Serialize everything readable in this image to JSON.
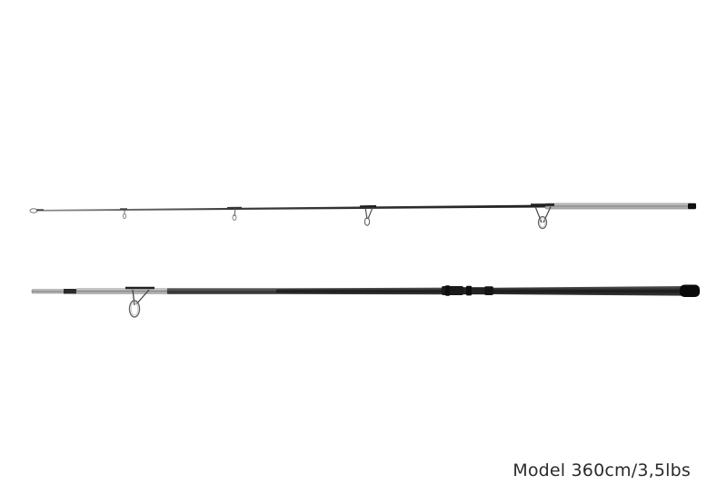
{
  "caption": "Model 360cm/3,5lbs",
  "colors": {
    "background": "#ffffff",
    "blank": "#1f1f1f",
    "metal": "#9a9a9a",
    "caption": "#2b2b2b"
  },
  "subject": {
    "sections": [
      {
        "name": "tip-section",
        "guides": 4
      },
      {
        "name": "butt-section",
        "guides": 1
      }
    ]
  }
}
